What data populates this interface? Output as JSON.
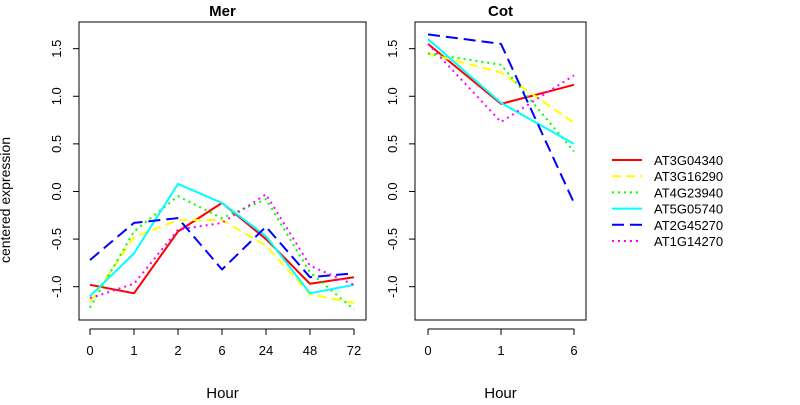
{
  "ylabel": "centered expression",
  "legend_placement": "right",
  "chart_data": [
    {
      "type": "line",
      "title": "Mer",
      "xlabel": "Hour",
      "ylabel": "centered expression",
      "categories": [
        "0",
        "1",
        "2",
        "6",
        "24",
        "48",
        "72"
      ],
      "ylim": [
        -1.35,
        1.78
      ],
      "yticks": [
        -1.0,
        -0.5,
        0.0,
        0.5,
        1.0,
        1.5
      ],
      "ytick_labels": [
        "-1.0",
        "-0.5",
        "0.0",
        "0.5",
        "1.0",
        "1.5"
      ],
      "grid": false,
      "series": [
        {
          "name": "AT3G04340",
          "color": "#ff0000",
          "dash": "solid",
          "values": [
            -0.98,
            -1.07,
            -0.42,
            -0.12,
            -0.5,
            -0.97,
            -0.9
          ]
        },
        {
          "name": "AT3G16290",
          "color": "#ffff00",
          "dash": "dashed",
          "values": [
            -1.16,
            -0.48,
            -0.3,
            -0.3,
            -0.57,
            -1.08,
            -1.17
          ]
        },
        {
          "name": "AT4G23940",
          "color": "#00ff00",
          "dash": "dotted",
          "values": [
            -1.22,
            -0.42,
            -0.05,
            -0.28,
            -0.08,
            -0.85,
            -1.24
          ]
        },
        {
          "name": "AT5G05740",
          "color": "#00ffff",
          "dash": "solid",
          "values": [
            -1.1,
            -0.65,
            0.08,
            -0.12,
            -0.47,
            -1.07,
            -0.98
          ]
        },
        {
          "name": "AT2G45270",
          "color": "#0000ff",
          "dash": "longdash",
          "values": [
            -0.72,
            -0.33,
            -0.28,
            -0.82,
            -0.37,
            -0.9,
            -0.86
          ]
        },
        {
          "name": "AT1G14270",
          "color": "#ff00ff",
          "dash": "dotted",
          "values": [
            -1.12,
            -0.97,
            -0.4,
            -0.33,
            -0.03,
            -0.78,
            -0.98
          ]
        }
      ]
    },
    {
      "type": "line",
      "title": "Cot",
      "xlabel": "Hour",
      "categories": [
        "0",
        "1",
        "6"
      ],
      "ylim": [
        -1.35,
        1.78
      ],
      "yticks": [
        -1.0,
        -0.5,
        0.0,
        0.5,
        1.0,
        1.5
      ],
      "ytick_labels": [
        "-1.0",
        "-0.5",
        "0.0",
        "0.5",
        "1.0",
        "1.5"
      ],
      "grid": false,
      "series": [
        {
          "name": "AT3G04340",
          "color": "#ff0000",
          "dash": "solid",
          "values": [
            1.55,
            0.92,
            1.12
          ]
        },
        {
          "name": "AT3G16290",
          "color": "#ffff00",
          "dash": "dashed",
          "values": [
            1.45,
            1.25,
            0.72
          ]
        },
        {
          "name": "AT4G23940",
          "color": "#00ff00",
          "dash": "dotted",
          "values": [
            1.45,
            1.33,
            0.42
          ]
        },
        {
          "name": "AT5G05740",
          "color": "#00ffff",
          "dash": "solid",
          "values": [
            1.6,
            0.93,
            0.5
          ]
        },
        {
          "name": "AT2G45270",
          "color": "#0000ff",
          "dash": "longdash",
          "values": [
            1.65,
            1.55,
            -0.12
          ]
        },
        {
          "name": "AT1G14270",
          "color": "#ff00ff",
          "dash": "dotted",
          "values": [
            1.55,
            0.73,
            1.22
          ]
        }
      ]
    }
  ]
}
